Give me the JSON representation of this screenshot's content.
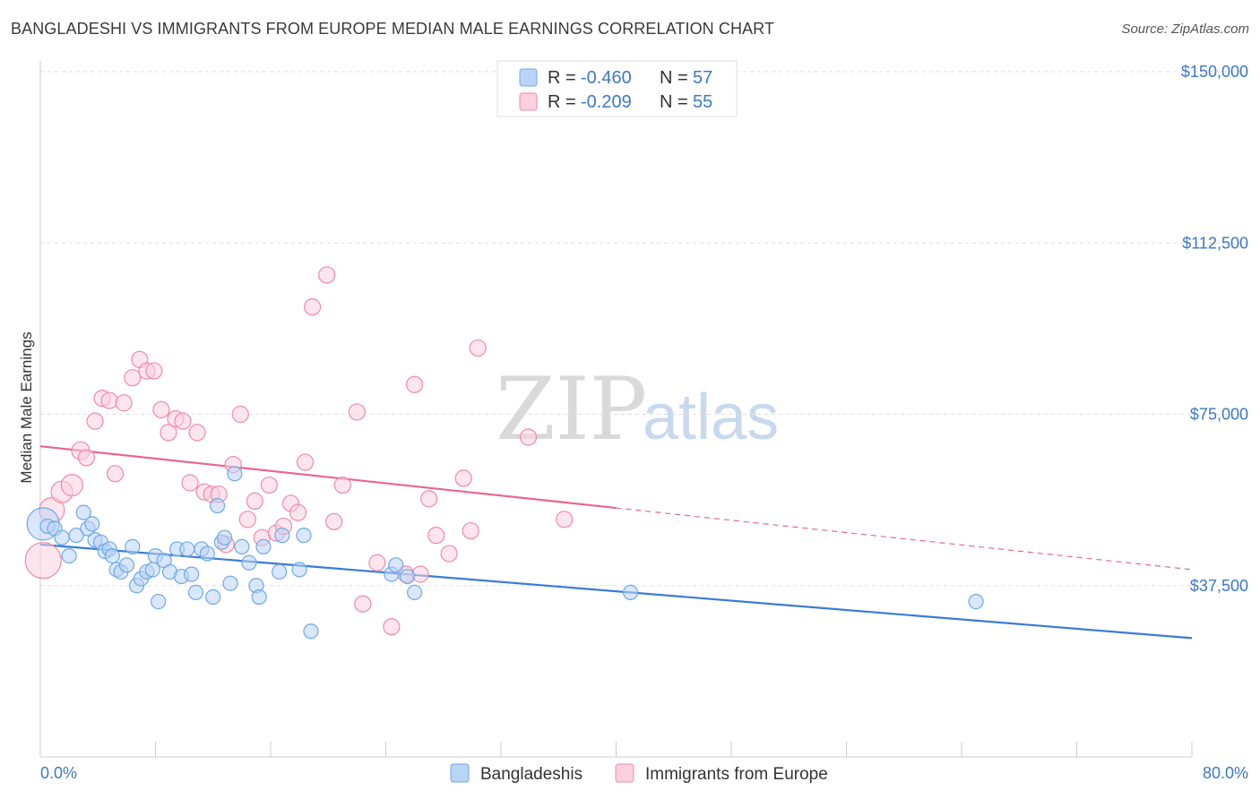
{
  "title": "BANGLADESHI VS IMMIGRANTS FROM EUROPE MEDIAN MALE EARNINGS CORRELATION CHART",
  "source": "Source: ZipAtlas.com",
  "watermark": {
    "zip": "ZIP",
    "atlas": "atlas"
  },
  "legend_top": [
    {
      "r_label": "R = ",
      "r_value": "-0.460",
      "n_label": "N = ",
      "n_value": "57",
      "color": "#6fa8e8",
      "fill": "#b9d4f5"
    },
    {
      "r_label": "R = ",
      "r_value": "-0.209",
      "n_label": "N = ",
      "n_value": "55",
      "color": "#f08aaa",
      "fill": "#fbd0de"
    }
  ],
  "legend_bottom": [
    {
      "label": "Bangladeshis",
      "color": "#6fa8e8",
      "fill": "#b9d4f5"
    },
    {
      "label": "Immigrants from Europe",
      "color": "#f08aaa",
      "fill": "#fbd0de"
    }
  ],
  "chart_data": {
    "type": "scatter",
    "title": "BANGLADESHI VS IMMIGRANTS FROM EUROPE MEDIAN MALE EARNINGS CORRELATION CHART",
    "xlabel": "",
    "ylabel": "Median Male Earnings",
    "xlim": [
      0,
      80
    ],
    "ylim": [
      0,
      155000
    ],
    "x_tick_labels": [
      "0.0%",
      "80.0%"
    ],
    "y_ticks": [
      37500,
      75000,
      112500,
      150000
    ],
    "y_tick_labels": [
      "$37,500",
      "$75,000",
      "$112,500",
      "$150,000"
    ],
    "grid": true,
    "series": [
      {
        "name": "Bangladeshis",
        "color": "#3a7bd5",
        "fill": "#b9d4f5",
        "edge": "#6fa8e8",
        "trend": {
          "x": [
            0,
            80
          ],
          "y": [
            46500,
            26000
          ],
          "dashed_from": null
        },
        "points": [
          [
            0.2,
            51000,
            18
          ],
          [
            0.5,
            50500,
            8
          ],
          [
            1.0,
            50000,
            8
          ],
          [
            1.5,
            48000,
            8
          ],
          [
            2.0,
            44000,
            8
          ],
          [
            2.5,
            48500,
            8
          ],
          [
            3.0,
            53500,
            8
          ],
          [
            3.3,
            50000,
            8
          ],
          [
            3.6,
            51000,
            8
          ],
          [
            3.8,
            47500,
            8
          ],
          [
            4.2,
            47000,
            8
          ],
          [
            4.5,
            45000,
            8
          ],
          [
            4.8,
            45500,
            8
          ],
          [
            5.0,
            44000,
            8
          ],
          [
            5.3,
            41000,
            8
          ],
          [
            5.6,
            40500,
            8
          ],
          [
            6.0,
            42000,
            8
          ],
          [
            6.4,
            46000,
            8
          ],
          [
            6.7,
            37500,
            8
          ],
          [
            7.0,
            39000,
            8
          ],
          [
            7.4,
            40500,
            8
          ],
          [
            7.8,
            41000,
            8
          ],
          [
            8.0,
            44000,
            8
          ],
          [
            8.2,
            34000,
            8
          ],
          [
            8.6,
            43000,
            8
          ],
          [
            9.0,
            40500,
            8
          ],
          [
            9.5,
            45500,
            8
          ],
          [
            9.8,
            39500,
            8
          ],
          [
            10.2,
            45500,
            8
          ],
          [
            10.5,
            40000,
            8
          ],
          [
            10.8,
            36000,
            8
          ],
          [
            11.2,
            45500,
            8
          ],
          [
            11.6,
            44500,
            8
          ],
          [
            12.0,
            35000,
            8
          ],
          [
            12.3,
            55000,
            8
          ],
          [
            12.6,
            47000,
            8
          ],
          [
            12.8,
            48000,
            8
          ],
          [
            13.2,
            38000,
            8
          ],
          [
            13.5,
            62000,
            8
          ],
          [
            14.0,
            46000,
            8
          ],
          [
            14.5,
            42500,
            8
          ],
          [
            15.0,
            37500,
            8
          ],
          [
            15.2,
            35000,
            8
          ],
          [
            15.5,
            46000,
            8
          ],
          [
            16.6,
            40500,
            8
          ],
          [
            16.8,
            48500,
            8
          ],
          [
            18.0,
            41000,
            8
          ],
          [
            18.3,
            48500,
            8
          ],
          [
            18.8,
            27500,
            8
          ],
          [
            24.4,
            40000,
            8
          ],
          [
            24.7,
            42000,
            8
          ],
          [
            25.5,
            39500,
            8
          ],
          [
            26.0,
            36000,
            8
          ],
          [
            41.0,
            36000,
            8
          ],
          [
            65.0,
            34000,
            8
          ]
        ]
      },
      {
        "name": "Immigrants from Europe",
        "color": "#e8658f",
        "fill": "#fbd0de",
        "edge": "#f08aaa",
        "trend": {
          "x": [
            0,
            80
          ],
          "y": [
            68000,
            41000
          ],
          "dashed_from": 40
        },
        "points": [
          [
            0.2,
            43000,
            20
          ],
          [
            0.8,
            54000,
            14
          ],
          [
            1.5,
            58000,
            12
          ],
          [
            2.2,
            59500,
            12
          ],
          [
            2.8,
            67000,
            10
          ],
          [
            3.2,
            65500,
            9
          ],
          [
            3.8,
            73500,
            9
          ],
          [
            4.3,
            78500,
            9
          ],
          [
            4.8,
            78000,
            9
          ],
          [
            5.2,
            62000,
            9
          ],
          [
            5.8,
            77500,
            9
          ],
          [
            6.4,
            83000,
            9
          ],
          [
            6.9,
            87000,
            9
          ],
          [
            7.4,
            84500,
            9
          ],
          [
            7.9,
            84500,
            9
          ],
          [
            8.4,
            76000,
            9
          ],
          [
            8.9,
            71000,
            9
          ],
          [
            9.4,
            74000,
            9
          ],
          [
            9.9,
            73500,
            9
          ],
          [
            10.4,
            60000,
            9
          ],
          [
            10.9,
            71000,
            9
          ],
          [
            11.4,
            58000,
            9
          ],
          [
            11.9,
            57500,
            9
          ],
          [
            12.4,
            57500,
            9
          ],
          [
            12.9,
            46500,
            9
          ],
          [
            13.4,
            64000,
            9
          ],
          [
            13.9,
            75000,
            9
          ],
          [
            14.4,
            52000,
            9
          ],
          [
            14.9,
            56000,
            9
          ],
          [
            15.4,
            48000,
            9
          ],
          [
            15.9,
            59500,
            9
          ],
          [
            16.4,
            49000,
            9
          ],
          [
            16.9,
            50500,
            9
          ],
          [
            17.4,
            55500,
            9
          ],
          [
            17.9,
            53500,
            9
          ],
          [
            18.4,
            64500,
            9
          ],
          [
            18.9,
            98500,
            9
          ],
          [
            19.9,
            105500,
            9
          ],
          [
            20.4,
            51500,
            9
          ],
          [
            21.0,
            59500,
            9
          ],
          [
            22.0,
            75500,
            9
          ],
          [
            22.4,
            33500,
            9
          ],
          [
            23.4,
            42500,
            9
          ],
          [
            24.4,
            28500,
            9
          ],
          [
            25.4,
            40000,
            9
          ],
          [
            26.0,
            81500,
            9
          ],
          [
            27.0,
            56500,
            9
          ],
          [
            27.5,
            48500,
            9
          ],
          [
            28.4,
            44500,
            9
          ],
          [
            29.4,
            61000,
            9
          ],
          [
            29.9,
            49500,
            9
          ],
          [
            30.4,
            89500,
            9
          ],
          [
            33.9,
            70000,
            9
          ],
          [
            36.4,
            52000,
            9
          ],
          [
            26.4,
            40000,
            9
          ]
        ]
      }
    ]
  }
}
